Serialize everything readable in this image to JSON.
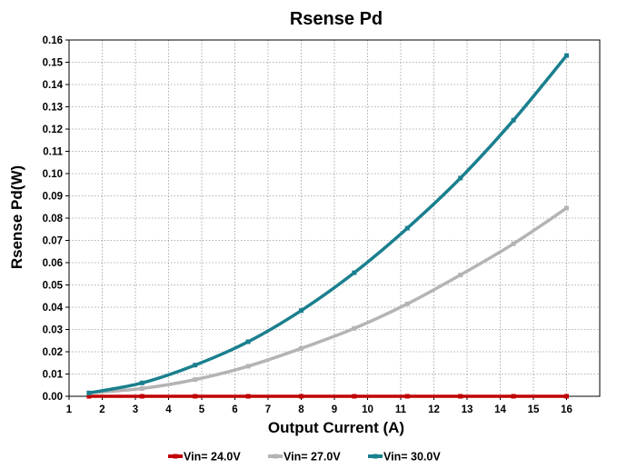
{
  "chart_data": {
    "type": "line",
    "title": "Rsense Pd",
    "xlabel": "Output Current (A)",
    "ylabel": "Rsense Pd(W)",
    "xlim": [
      1,
      17
    ],
    "ylim": [
      0,
      0.16
    ],
    "xticks": [
      1,
      2,
      3,
      4,
      5,
      6,
      7,
      8,
      9,
      10,
      11,
      12,
      13,
      14,
      15,
      16
    ],
    "xtick_labels": [
      "1",
      "2",
      "3",
      "4",
      "5",
      "6",
      "7",
      "8",
      "9",
      "10",
      "11",
      "12",
      "13",
      "14",
      "15",
      "16"
    ],
    "yticks": [
      0,
      0.01,
      0.02,
      0.03,
      0.04,
      0.05,
      0.06,
      0.07,
      0.08,
      0.09,
      0.1,
      0.11,
      0.12,
      0.13,
      0.14,
      0.15,
      0.16
    ],
    "ytick_labels": [
      "0.00",
      "0.01",
      "0.02",
      "0.03",
      "0.04",
      "0.05",
      "0.06",
      "0.07",
      "0.08",
      "0.09",
      "0.10",
      "0.11",
      "0.12",
      "0.13",
      "0.14",
      "0.15",
      "0.16"
    ],
    "grid": true,
    "legend_position": "bottom",
    "series": [
      {
        "name": "Vin= 24.0V",
        "color": "#c00000",
        "marker": "square",
        "x": [
          1.6,
          3.2,
          4.8,
          6.4,
          8.0,
          9.6,
          11.2,
          12.8,
          14.4,
          16.0
        ],
        "y": [
          0,
          0,
          0,
          0,
          0,
          0,
          0,
          0,
          0,
          0
        ]
      },
      {
        "name": "Vin= 27.0V",
        "color": "#b4b4b4",
        "marker": "square",
        "x": [
          1.6,
          3.2,
          4.8,
          6.4,
          8.0,
          9.6,
          11.2,
          12.8,
          14.4,
          16.0
        ],
        "y": [
          0.0015,
          0.0035,
          0.0075,
          0.0135,
          0.0215,
          0.0305,
          0.0415,
          0.0545,
          0.0685,
          0.0845
        ]
      },
      {
        "name": "Vin= 30.0V",
        "color": "#1a7f8e",
        "marker": "square",
        "x": [
          1.6,
          3.2,
          4.8,
          6.4,
          8.0,
          9.6,
          11.2,
          12.8,
          14.4,
          16.0
        ],
        "y": [
          0.0015,
          0.006,
          0.014,
          0.0245,
          0.0385,
          0.0555,
          0.0755,
          0.098,
          0.124,
          0.153
        ]
      }
    ]
  }
}
